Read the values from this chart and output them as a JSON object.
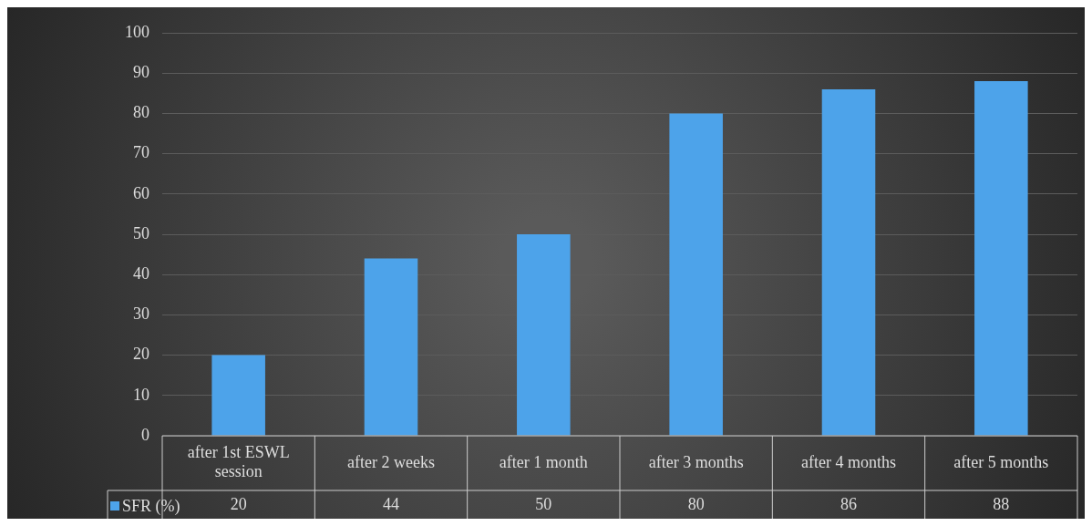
{
  "chart_data": {
    "type": "bar",
    "categories": [
      "after 1st ESWL session",
      "after 2 weeks",
      "after 1 month",
      "after 3 months",
      "after 4 months",
      "after 5 months"
    ],
    "series": [
      {
        "name": "SFR (%)",
        "color": "#4da3ea",
        "values": [
          20,
          44,
          50,
          80,
          86,
          88
        ]
      }
    ],
    "ylim": [
      0,
      100
    ],
    "yticks": [
      0,
      10,
      20,
      30,
      40,
      50,
      60,
      70,
      80,
      90,
      100
    ],
    "grid": "y",
    "data_labels": true,
    "legend": "bottom"
  }
}
